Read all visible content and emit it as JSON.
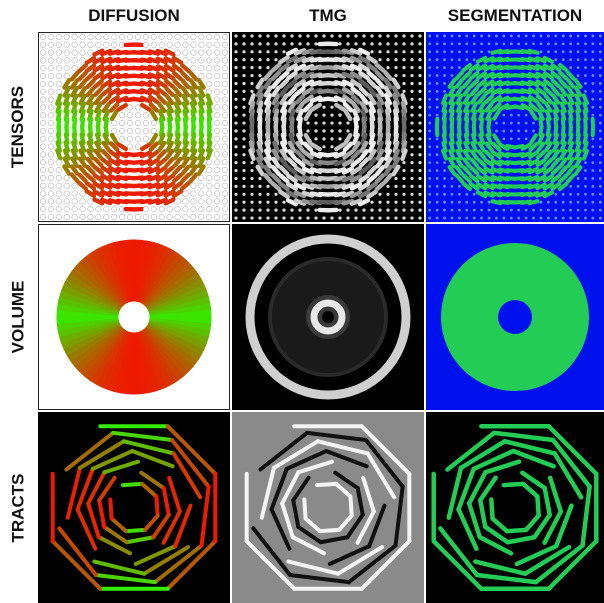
{
  "columns": [
    "DIFFUSION",
    "TMG",
    "SEGMENTATION"
  ],
  "rows": [
    "TENSORS",
    "VOLUME",
    "TRACTS"
  ],
  "colors": {
    "diffusion_white": "#ffffff",
    "tmg_black": "#000000",
    "tracts_gray_bg": "#8a8a8a",
    "segmentation_blue": "#0011ee",
    "segmentation_green": "#22cc55",
    "diffusion_red": "#ee1a00",
    "diffusion_green": "#33ee00",
    "tmg_gray": "#cfcfcf"
  }
}
